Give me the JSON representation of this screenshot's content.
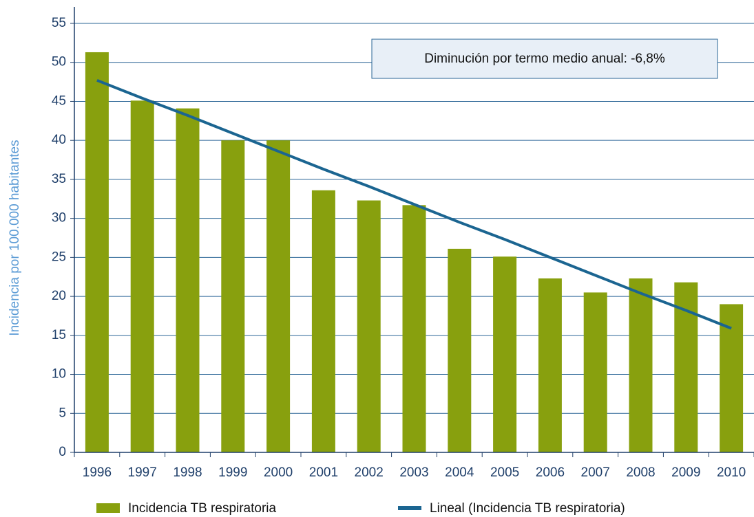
{
  "chart_data": {
    "type": "bar",
    "y_label": "Incidencia por 100.000 habitantes",
    "annotation": "Diminución por termo medio anual: -6,8%",
    "categories": [
      "1996",
      "1997",
      "1998",
      "1999",
      "2000",
      "2001",
      "2002",
      "2003",
      "2004",
      "2005",
      "2006",
      "2007",
      "2008",
      "2009",
      "2010"
    ],
    "series": [
      {
        "name": "Incidencia TB respiratoria",
        "color": "#88a00e",
        "type": "bar",
        "values": [
          51.3,
          45.1,
          44.1,
          40.0,
          40.0,
          33.6,
          32.3,
          31.7,
          26.1,
          25.1,
          22.3,
          20.5,
          22.3,
          21.8,
          19.0
        ]
      },
      {
        "name": "Lineal (Incidencia TB respiratoria)",
        "color": "#1b6591",
        "type": "line",
        "values": [
          47.7,
          45.4,
          43.2,
          40.9,
          38.6,
          36.3,
          34.1,
          31.8,
          29.5,
          27.3,
          25.0,
          22.7,
          20.4,
          18.2,
          15.9
        ]
      }
    ],
    "ylim": [
      0,
      55
    ],
    "yticks": [
      0,
      5,
      10,
      15,
      20,
      25,
      30,
      35,
      40,
      45,
      50,
      55
    ],
    "grid": true,
    "legend": "bottom"
  }
}
